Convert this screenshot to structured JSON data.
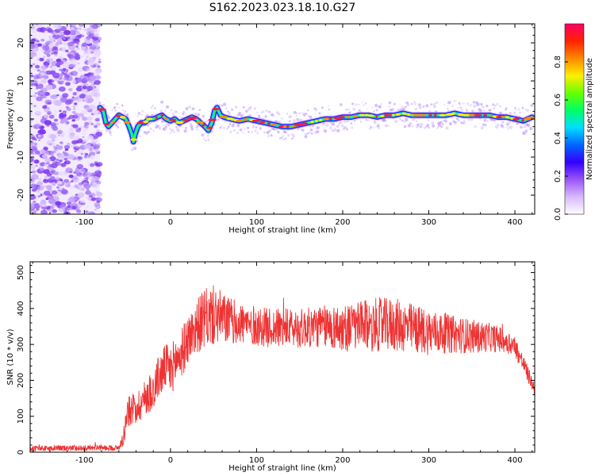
{
  "figure": {
    "title": "S162.2023.023.18.10.G27"
  },
  "chart_data": [
    {
      "type": "heatmap",
      "title": "S162.2023.023.18.10.G27",
      "xlabel": "Height of straight line (km)",
      "ylabel": "Frequency (Hz)",
      "xlim": [
        -163,
        423
      ],
      "ylim": [
        -25,
        25
      ],
      "x_ticks": [
        -100,
        0,
        100,
        200,
        300,
        400
      ],
      "x_tick_labels": [
        "-100",
        "0",
        "100",
        "200",
        "300",
        "400"
      ],
      "y_ticks": [
        -20,
        -10,
        0,
        10,
        20
      ],
      "y_tick_labels": [
        "-20",
        "-10",
        "0",
        "10",
        "20"
      ],
      "noise_region_x": [
        -163,
        -82
      ],
      "ridge": {
        "x": [
          -82,
          -78,
          -75,
          -72,
          -68,
          -64,
          -60,
          -56,
          -52,
          -48,
          -45,
          -43,
          -41,
          -38,
          -34,
          -30,
          -25,
          -20,
          -15,
          -10,
          -5,
          0,
          5,
          10,
          15,
          20,
          25,
          30,
          35,
          40,
          44,
          48,
          51,
          54,
          58,
          62,
          70,
          80,
          90,
          100,
          110,
          120,
          130,
          140,
          150,
          160,
          170,
          180,
          190,
          200,
          210,
          220,
          230,
          240,
          250,
          260,
          270,
          280,
          290,
          300,
          310,
          320,
          330,
          340,
          350,
          360,
          370,
          380,
          390,
          400,
          410,
          420
        ],
        "y": [
          3,
          2,
          -1,
          -2,
          -1,
          0,
          1,
          0.5,
          0,
          -2,
          -4,
          -6,
          -4,
          -2,
          -1,
          -1,
          0,
          0,
          0.5,
          1,
          0,
          -0.5,
          0,
          -1,
          -0.5,
          0,
          0.5,
          0,
          -1,
          -2,
          -3,
          -1,
          2,
          3,
          1,
          0.5,
          0,
          -0.5,
          0,
          -0.5,
          -1,
          -1.5,
          -2,
          -2,
          -1.5,
          -1,
          -0.5,
          0,
          0,
          0.5,
          0.5,
          1,
          1,
          0.5,
          1,
          1,
          1.5,
          1,
          1,
          1,
          1,
          1,
          1.5,
          1,
          1,
          1,
          1,
          0.5,
          0.5,
          0,
          -0.5,
          0.5
        ]
      },
      "colorbar": {
        "label": "Normalized spectral amplitude",
        "ticks": [
          0.0,
          0.2,
          0.4,
          0.6,
          0.8
        ],
        "tick_labels": [
          "0.0",
          "0.2",
          "0.4",
          "0.6",
          "0.8"
        ],
        "range": [
          0,
          1
        ],
        "colors": [
          "#ffffff",
          "#d8b8ff",
          "#9a55f5",
          "#3300ff",
          "#0066ff",
          "#00ddff",
          "#00ff66",
          "#66ff00",
          "#ffee00",
          "#ff8800",
          "#ff2200",
          "#ff0066"
        ]
      }
    },
    {
      "type": "line",
      "xlabel": "Height of straight line (km)",
      "ylabel": "SNR (10 * v/v)",
      "xlim": [
        -163,
        423
      ],
      "ylim": [
        0,
        530
      ],
      "x_ticks": [
        -100,
        0,
        100,
        200,
        300,
        400
      ],
      "x_tick_labels": [
        "-100",
        "0",
        "100",
        "200",
        "300",
        "400"
      ],
      "y_ticks": [
        0,
        100,
        200,
        300,
        400,
        500
      ],
      "y_tick_labels": [
        "0",
        "100",
        "200",
        "300",
        "400",
        "500"
      ],
      "color": "#ee3333",
      "x": [
        -163,
        -100,
        -60,
        -55,
        -50,
        -45,
        -40,
        -35,
        -30,
        -25,
        -20,
        -15,
        -10,
        -5,
        0,
        5,
        10,
        15,
        20,
        25,
        30,
        35,
        40,
        45,
        50,
        55,
        60,
        70,
        80,
        100,
        120,
        150,
        180,
        200,
        220,
        240,
        260,
        280,
        300,
        320,
        340,
        360,
        370,
        380,
        390,
        400,
        410,
        423
      ],
      "y": [
        10,
        12,
        12,
        40,
        110,
        120,
        125,
        135,
        150,
        165,
        175,
        205,
        220,
        240,
        225,
        250,
        265,
        285,
        315,
        330,
        350,
        360,
        370,
        375,
        380,
        378,
        372,
        365,
        360,
        350,
        345,
        345,
        350,
        345,
        350,
        355,
        355,
        345,
        335,
        330,
        325,
        320,
        320,
        315,
        310,
        295,
        245,
        175
      ],
      "noise_amplitude": [
        8,
        8,
        8,
        25,
        40,
        45,
        45,
        50,
        50,
        55,
        60,
        60,
        65,
        65,
        70,
        70,
        70,
        70,
        70,
        70,
        75,
        80,
        85,
        85,
        85,
        80,
        75,
        65,
        60,
        55,
        55,
        55,
        60,
        65,
        70,
        75,
        75,
        70,
        65,
        55,
        50,
        45,
        40,
        38,
        35,
        30,
        25,
        20
      ]
    }
  ]
}
